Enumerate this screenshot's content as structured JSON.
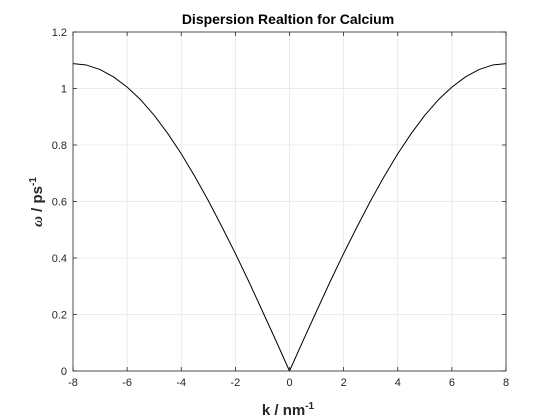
{
  "chart_data": {
    "type": "line",
    "title": "Dispersion Realtion for Calcium",
    "xlabel": {
      "omega_symbol": "",
      "base": "k / nm",
      "superscript": "-1"
    },
    "ylabel": {
      "omega_symbol": "ω",
      "base": " / ps",
      "superscript": "-1"
    },
    "xlim": [
      -8,
      8
    ],
    "ylim": [
      0,
      1.2
    ],
    "xticks": [
      -8,
      -6,
      -4,
      -2,
      0,
      2,
      4,
      6,
      8
    ],
    "yticks": [
      0,
      0.2,
      0.4,
      0.6,
      0.8,
      1,
      1.2
    ],
    "grid": true,
    "series": [
      {
        "color": "#000000",
        "x": [
          -8,
          -7.5,
          -7,
          -6.5,
          -6,
          -5.5,
          -5,
          -4.5,
          -4,
          -3.5,
          -3,
          -2.5,
          -2,
          -1.5,
          -1,
          -0.5,
          0,
          0.5,
          1,
          1.5,
          2,
          2.5,
          3,
          3.5,
          4,
          4.5,
          5,
          5.5,
          6,
          6.5,
          7,
          7.5,
          8
        ],
        "y": [
          1.088,
          1.083,
          1.067,
          1.041,
          1.005,
          0.96,
          0.905,
          0.841,
          0.769,
          0.689,
          0.603,
          0.511,
          0.416,
          0.316,
          0.212,
          0.107,
          0.0,
          0.107,
          0.212,
          0.316,
          0.416,
          0.511,
          0.603,
          0.689,
          0.769,
          0.841,
          0.905,
          0.96,
          1.005,
          1.041,
          1.067,
          1.083,
          1.088
        ]
      }
    ],
    "colors": {
      "grid": "#e6e6e6",
      "axes": "#262626",
      "line": "#000000"
    }
  }
}
